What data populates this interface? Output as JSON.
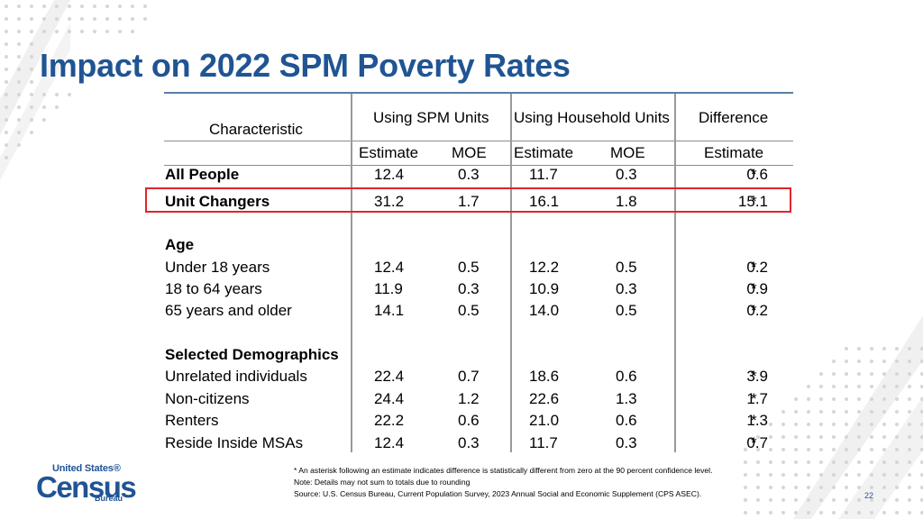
{
  "title": "Impact on 2022 SPM Poverty Rates",
  "headers": {
    "characteristic": "Characteristic",
    "spm_units": "Using SPM Units",
    "household_units": "Using Household Units",
    "difference": "Difference",
    "estimate": "Estimate",
    "moe": "MOE"
  },
  "rows": {
    "all_people": {
      "label": "All People",
      "spm_est": "12.4",
      "spm_moe": "0.3",
      "hh_est": "11.7",
      "hh_moe": "0.3",
      "diff": "0.6",
      "star": "*"
    },
    "unit_changers": {
      "label": "Unit Changers",
      "spm_est": "31.2",
      "spm_moe": "1.7",
      "hh_est": "16.1",
      "hh_moe": "1.8",
      "diff": "15.1",
      "star": "*"
    },
    "age_heading": "Age",
    "under18": {
      "label": "Under 18 years",
      "spm_est": "12.4",
      "spm_moe": "0.5",
      "hh_est": "12.2",
      "hh_moe": "0.5",
      "diff": "0.2",
      "star": "*"
    },
    "age18_64": {
      "label": "18 to 64 years",
      "spm_est": "11.9",
      "spm_moe": "0.3",
      "hh_est": "10.9",
      "hh_moe": "0.3",
      "diff": "0.9",
      "star": "*"
    },
    "age65": {
      "label": "65 years and older",
      "spm_est": "14.1",
      "spm_moe": "0.5",
      "hh_est": "14.0",
      "hh_moe": "0.5",
      "diff": "0.2",
      "star": "*"
    },
    "demo_heading": "Selected Demographics",
    "unrelated": {
      "label": "Unrelated individuals",
      "spm_est": "22.4",
      "spm_moe": "0.7",
      "hh_est": "18.6",
      "hh_moe": "0.6",
      "diff": "3.9",
      "star": "*"
    },
    "noncitizens": {
      "label": "Non-citizens",
      "spm_est": "24.4",
      "spm_moe": "1.2",
      "hh_est": "22.6",
      "hh_moe": "1.3",
      "diff": "1.7",
      "star": "*"
    },
    "renters": {
      "label": "Renters",
      "spm_est": "22.2",
      "spm_moe": "0.6",
      "hh_est": "21.0",
      "hh_moe": "0.6",
      "diff": "1.3",
      "star": "*"
    },
    "msas": {
      "label": "Reside Inside MSAs",
      "spm_est": "12.4",
      "spm_moe": "0.3",
      "hh_est": "11.7",
      "hh_moe": "0.3",
      "diff": "0.7",
      "star": "*"
    }
  },
  "footnotes": {
    "asterisk": "* An asterisk following an estimate indicates difference is statistically different from zero at the 90 percent confidence level.",
    "note": "Note: Details may not sum to totals due to rounding",
    "source": "Source: U.S. Census Bureau, Current Population Survey, 2023 Annual Social and Economic Supplement (CPS ASEC)."
  },
  "logo": {
    "line1": "United States®",
    "line2": "Census",
    "line3": "Bureau"
  },
  "page_number": "22",
  "colors": {
    "title": "#205493",
    "highlight": "#e0242b"
  }
}
